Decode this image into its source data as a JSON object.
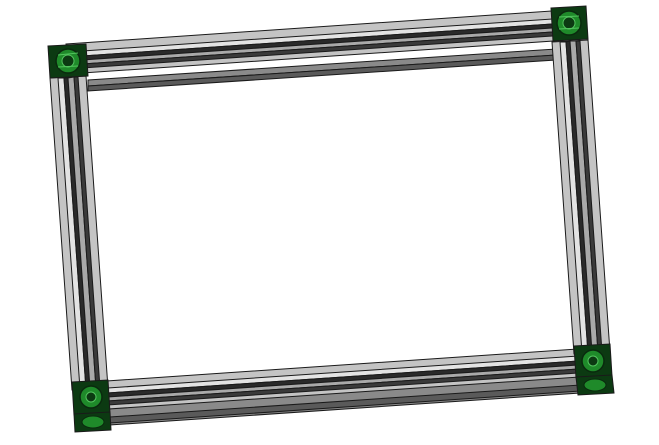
{
  "scene": {
    "subject": "aluminum-extrusion-rectangular-frame",
    "background_color": "#ffffff",
    "rail_color": "#c4c4c4",
    "rail_shadow_color": "#8a8a8a",
    "rail_slot_color": "#2a2a2a",
    "outline_color": "#1a1a1a",
    "corner_bracket_color": "#0c3a12",
    "corner_bracket_highlight": "#1f8a2a"
  },
  "components": {
    "rails": [
      {
        "id": "top-rail"
      },
      {
        "id": "bottom-rail"
      },
      {
        "id": "left-rail"
      },
      {
        "id": "right-rail"
      }
    ],
    "corners": [
      {
        "id": "top-left"
      },
      {
        "id": "top-right"
      },
      {
        "id": "bottom-left"
      },
      {
        "id": "bottom-right"
      }
    ]
  }
}
